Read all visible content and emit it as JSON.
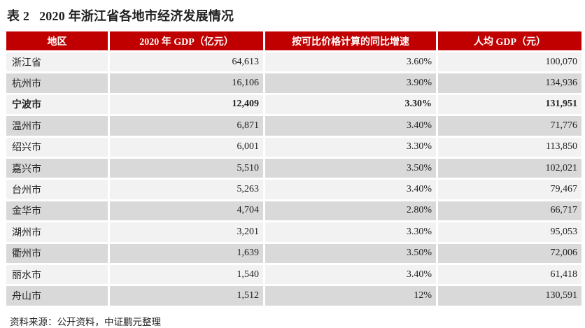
{
  "title": {
    "label": "表 2",
    "text": "2020 年浙江省各地市经济发展情况"
  },
  "table": {
    "headers": [
      "地区",
      "2020 年 GDP（亿元）",
      "按可比价格计算的同比增速",
      "人均 GDP（元）"
    ],
    "rows": [
      {
        "region": "浙江省",
        "gdp": "64,613",
        "growth": "3.60%",
        "per_capita": "100,070"
      },
      {
        "region": "杭州市",
        "gdp": "16,106",
        "growth": "3.90%",
        "per_capita": "134,936"
      },
      {
        "region": "宁波市",
        "gdp": "12,409",
        "growth": "3.30%",
        "per_capita": "131,951"
      },
      {
        "region": "温州市",
        "gdp": "6,871",
        "growth": "3.40%",
        "per_capita": "71,776"
      },
      {
        "region": "绍兴市",
        "gdp": "6,001",
        "growth": "3.30%",
        "per_capita": "113,850"
      },
      {
        "region": "嘉兴市",
        "gdp": "5,510",
        "growth": "3.50%",
        "per_capita": "102,021"
      },
      {
        "region": "台州市",
        "gdp": "5,263",
        "growth": "3.40%",
        "per_capita": "79,467"
      },
      {
        "region": "金华市",
        "gdp": "4,704",
        "growth": "2.80%",
        "per_capita": "66,717"
      },
      {
        "region": "湖州市",
        "gdp": "3,201",
        "growth": "3.30%",
        "per_capita": "95,053"
      },
      {
        "region": "衢州市",
        "gdp": "1,639",
        "growth": "3.50%",
        "per_capita": "72,006"
      },
      {
        "region": "丽水市",
        "gdp": "1,540",
        "growth": "3.40%",
        "per_capita": "61,418"
      },
      {
        "region": "舟山市",
        "gdp": "1,512",
        "growth": "12%",
        "per_capita": "130,591"
      }
    ],
    "highlighted_row": "宁波市"
  },
  "source": "资料来源：公开资料，中证鹏元整理",
  "colors": {
    "header_bg": "#c00000",
    "row_light": "#f2f2f2",
    "row_dark": "#d9d9d9"
  }
}
